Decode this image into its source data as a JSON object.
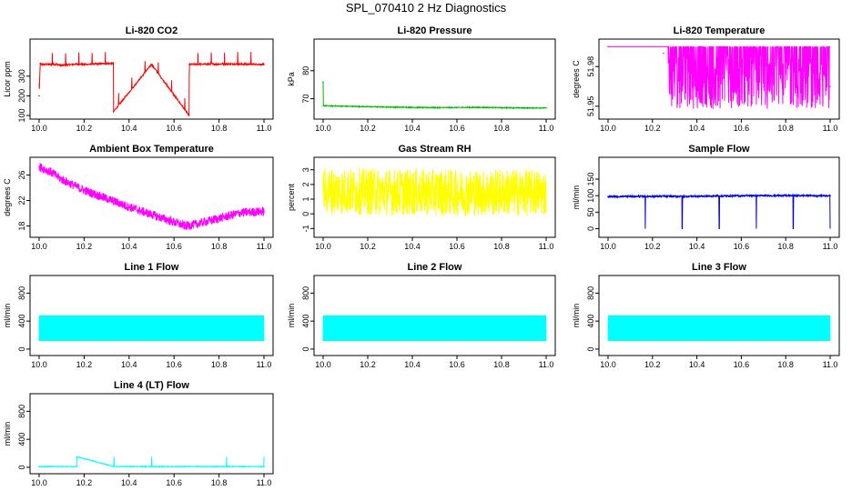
{
  "figure": {
    "title": "SPL_070410  2 Hz Diagnostics"
  },
  "chart_data": [
    {
      "type": "line",
      "title": "Li-820 CO2",
      "ylabel": "Licor ppm",
      "color": "#ff0000",
      "xlim": [
        10.0,
        11.0
      ],
      "ylim": [
        100,
        470
      ],
      "xticks": [
        "10.0",
        "10.2",
        "10.4",
        "10.6",
        "10.8",
        "11.0"
      ],
      "yticks": [
        100,
        200,
        300
      ],
      "series": [
        {
          "x": [
            10.0,
            10.005,
            10.01,
            10.08,
            10.1,
            10.17,
            10.2,
            10.33,
            10.331,
            10.5,
            10.667,
            10.668,
            10.83,
            11.0
          ],
          "values": [
            200,
            365,
            360,
            360,
            355,
            362,
            360,
            365,
            120,
            360,
            100,
            360,
            362,
            360
          ]
        }
      ]
    },
    {
      "type": "line",
      "title": "Li-820 Pressure",
      "ylabel": "kPa",
      "color": "#00bb00",
      "xlim": [
        10.0,
        11.0
      ],
      "ylim": [
        64,
        90
      ],
      "xticks": [
        "10.0",
        "10.2",
        "10.4",
        "10.6",
        "10.8",
        "11.0"
      ],
      "yticks": [
        70,
        80
      ],
      "series": [
        {
          "x": [
            10.0,
            10.001,
            10.1,
            10.3,
            10.5,
            10.7,
            10.9,
            11.0
          ],
          "values": [
            76,
            67.5,
            67.3,
            67.0,
            66.8,
            66.9,
            66.7,
            66.7
          ]
        }
      ]
    },
    {
      "type": "line",
      "title": "Li-820 Temperature",
      "ylabel": "degrees C",
      "color": "#ff00ff",
      "xlim": [
        10.0,
        11.0
      ],
      "ylim": [
        51.943,
        51.998
      ],
      "xticks": [
        "10.0",
        "10.2",
        "10.4",
        "10.6",
        "10.8",
        "11.0"
      ],
      "yticks": [
        51.95,
        51.98
      ],
      "series": [
        {
          "x": [
            10.0,
            10.25,
            10.35,
            10.5,
            10.7,
            10.9,
            11.0
          ],
          "values": [
            51.995,
            51.99,
            51.97,
            51.965,
            51.965,
            51.965,
            51.965
          ]
        }
      ]
    },
    {
      "type": "line",
      "title": "Ambient Box Temperature",
      "ylabel": "degrees C",
      "color": "#ff00ff",
      "xlim": [
        10.0,
        11.0
      ],
      "ylim": [
        16.8,
        28.2
      ],
      "xticks": [
        "10.0",
        "10.2",
        "10.4",
        "10.6",
        "10.8",
        "11.0"
      ],
      "yticks": [
        18,
        22,
        26
      ],
      "series": [
        {
          "x": [
            10.0,
            10.05,
            10.1,
            10.2,
            10.3,
            10.4,
            10.5,
            10.6,
            10.65,
            10.7,
            10.8,
            10.9,
            11.0
          ],
          "values": [
            27.3,
            26.5,
            25.3,
            23.6,
            22.3,
            21.0,
            19.8,
            18.6,
            18.0,
            18.3,
            19.2,
            20.1,
            20.3
          ]
        }
      ]
    },
    {
      "type": "line",
      "title": "Gas Stream RH",
      "ylabel": "percent",
      "color": "#ffff00",
      "xlim": [
        10.0,
        11.0
      ],
      "ylim": [
        -1.35,
        3.6
      ],
      "xticks": [
        "10.0",
        "10.2",
        "10.4",
        "10.6",
        "10.8",
        "11.0"
      ],
      "yticks": [
        -1,
        0,
        1,
        2,
        3
      ],
      "series": [
        {
          "x": [
            10.0,
            10.25,
            10.5,
            10.75,
            11.0
          ],
          "values": [
            1.55,
            1.5,
            1.45,
            1.45,
            1.45
          ]
        }
      ]
    },
    {
      "type": "line",
      "title": "Sample Flow",
      "ylabel": "ml/min",
      "color": "#0000dd",
      "xlim": [
        10.0,
        11.0
      ],
      "ylim": [
        -15,
        205
      ],
      "xticks": [
        "10.0",
        "10.2",
        "10.4",
        "10.6",
        "10.8",
        "11.0"
      ],
      "yticks": [
        0,
        50,
        100,
        150
      ],
      "series": [
        {
          "x": [
            10.0,
            10.167,
            10.333,
            10.5,
            10.667,
            10.833,
            11.0
          ],
          "values": [
            97,
            98,
            98,
            99,
            100,
            100,
            100
          ]
        }
      ]
    },
    {
      "type": "line",
      "title": "Line 1 Flow",
      "ylabel": "ml/min",
      "color": "#00ffff",
      "xlim": [
        10.0,
        11.0
      ],
      "ylim": [
        -40,
        1000
      ],
      "xticks": [
        "10.0",
        "10.2",
        "10.4",
        "10.6",
        "10.8",
        "11.0"
      ],
      "yticks": [
        0,
        400,
        800
      ],
      "series": [
        {
          "x": [
            10.0,
            11.0
          ],
          "values": [
            300,
            300
          ]
        }
      ]
    },
    {
      "type": "line",
      "title": "Line 2 Flow",
      "ylabel": "ml/min",
      "color": "#00ffff",
      "xlim": [
        10.0,
        11.0
      ],
      "ylim": [
        -40,
        1000
      ],
      "xticks": [
        "10.0",
        "10.2",
        "10.4",
        "10.6",
        "10.8",
        "11.0"
      ],
      "yticks": [
        0,
        400,
        800
      ],
      "series": [
        {
          "x": [
            10.0,
            11.0
          ],
          "values": [
            260,
            260
          ]
        }
      ]
    },
    {
      "type": "line",
      "title": "Line 3 Flow",
      "ylabel": "ml/min",
      "color": "#00ffff",
      "xlim": [
        10.0,
        11.0
      ],
      "ylim": [
        -40,
        1000
      ],
      "xticks": [
        "10.0",
        "10.2",
        "10.4",
        "10.6",
        "10.8",
        "11.0"
      ],
      "yticks": [
        0,
        400,
        800
      ],
      "series": [
        {
          "x": [
            10.0,
            11.0
          ],
          "values": [
            310,
            310
          ]
        }
      ]
    },
    {
      "type": "line",
      "title": "Line 4 (LT) Flow",
      "ylabel": "ml/min",
      "color": "#00ffff",
      "xlim": [
        10.0,
        11.0
      ],
      "ylim": [
        -40,
        1000
      ],
      "xticks": [
        "10.0",
        "10.2",
        "10.4",
        "10.6",
        "10.8",
        "11.0"
      ],
      "yticks": [
        0,
        400,
        800
      ],
      "series": [
        {
          "x": [
            10.0,
            10.167,
            10.168,
            10.333,
            10.5,
            10.667,
            10.833,
            11.0
          ],
          "values": [
            10,
            10,
            150,
            10,
            10,
            10,
            10,
            10
          ]
        }
      ]
    }
  ]
}
